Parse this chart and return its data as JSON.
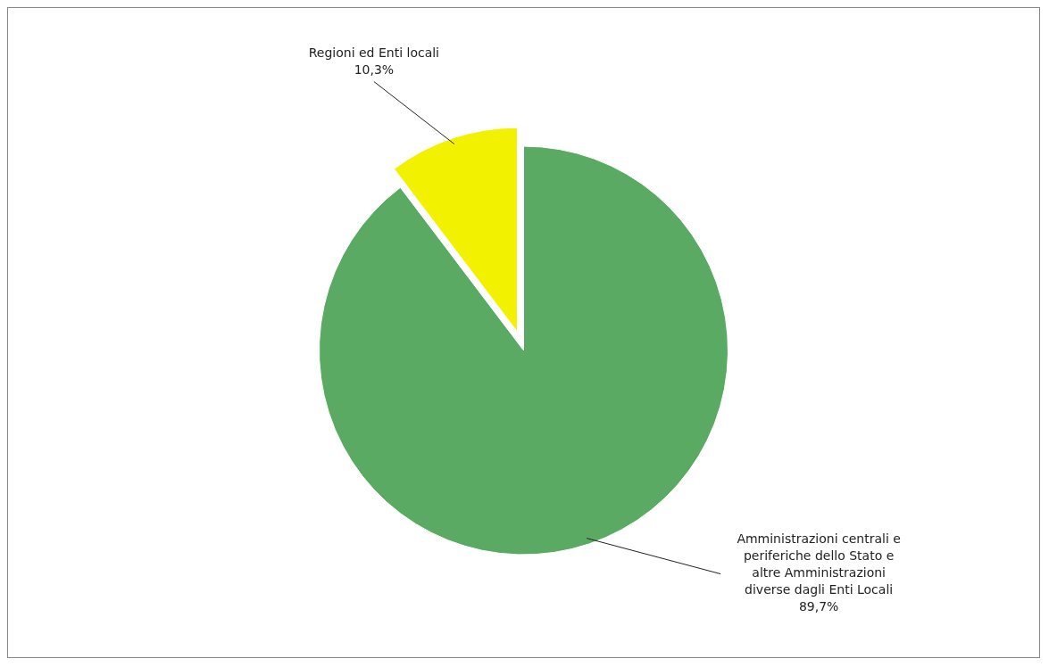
{
  "chart_data": {
    "type": "pie",
    "categories": [
      "Amministrazioni centrali e periferiche dello Stato e altre Amministrazioni diverse dagli Enti Locali",
      "Regioni ed Enti locali"
    ],
    "values": [
      89.7,
      10.3
    ],
    "colors": [
      "#5aaa64",
      "#f2f200"
    ],
    "value_labels": [
      "89,7%",
      "10,3%"
    ],
    "legend": false
  }
}
